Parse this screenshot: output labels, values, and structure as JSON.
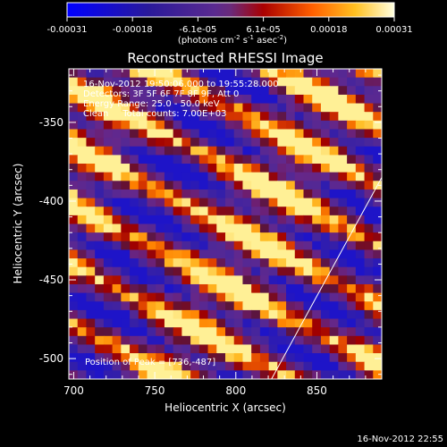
{
  "chart_data": {
    "type": "heatmap",
    "title": "Reconstructed RHESSI Image",
    "xlabel": "Heliocentric X (arcsec)",
    "ylabel": "Heliocentric Y (arcsec)",
    "xlim": [
      697,
      890
    ],
    "ylim": [
      -513,
      -316
    ],
    "x_ticks": [
      "700",
      "750",
      "800",
      "850"
    ],
    "y_ticks": [
      "-350",
      "-400",
      "-450",
      "-500"
    ],
    "colorbar": {
      "ticks": [
        "-0.00031",
        "-0.00018",
        "-6.1e-05",
        "6.1e-05",
        "0.00018",
        "0.00031"
      ],
      "range": [
        -0.00031,
        0.00031
      ],
      "units_label": "(photons cm",
      "units_exp1": "-2",
      "units_mid": " s",
      "units_exp2": "-1",
      "units_mid2": " asec",
      "units_exp3": "-2",
      "units_end": ")"
    },
    "info_lines": [
      "16-Nov-2012 19:50:06.000 to 19:55:28.000",
      "Detectors: 3F 5F 6F 7F 8F 9F, Att 0",
      "Energy Range: 25.0 - 50.0 keV",
      "Clean     Total counts: 7.00E+03"
    ],
    "peak_label": "Position of Peak = [736,-487]",
    "limb_line": [
      [
        822,
        -513
      ],
      [
        890,
        -385
      ]
    ],
    "colors": {
      "text": "#ffffff",
      "background": "#000000"
    }
  },
  "footer_timestamp": "16-Nov-2012 22:55"
}
